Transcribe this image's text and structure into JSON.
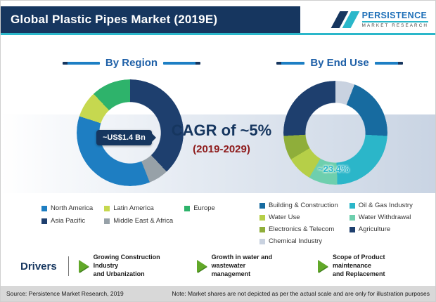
{
  "header": {
    "title": "Global Plastic Pipes Market (2019E)",
    "logo": {
      "line1": "PERSISTENCE",
      "line2": "MARKET RESEARCH"
    }
  },
  "center": {
    "cagr": "CAGR of ~5%",
    "period": "(2019-2029)"
  },
  "chart_data": [
    {
      "type": "pie",
      "title": "By Region",
      "donut": true,
      "callout": "~US$1.4 Bn",
      "legend_position": "bottom",
      "segments": [
        {
          "label": "Asia Pacific",
          "value": 38,
          "color": "#1e3f6e"
        },
        {
          "label": "Middle East & Africa",
          "value": 6,
          "color": "#97a1a8"
        },
        {
          "label": "North America",
          "value": 36,
          "color": "#1e7ec2"
        },
        {
          "label": "Latin America",
          "value": 8,
          "color": "#c6d84f"
        },
        {
          "label": "Europe",
          "value": 12,
          "color": "#2eb36b"
        }
      ],
      "legend": [
        {
          "label": "North America",
          "color": "#1e7ec2"
        },
        {
          "label": "Latin America",
          "color": "#c6d84f"
        },
        {
          "label": "Europe",
          "color": "#2eb36b"
        },
        {
          "label": "Asia Pacific",
          "color": "#1e3f6e"
        },
        {
          "label": "Middle East & Africa",
          "color": "#97a1a8"
        }
      ]
    },
    {
      "type": "pie",
      "title": "By End Use",
      "donut": true,
      "callout": "~23.4%",
      "legend_position": "bottom",
      "segments": [
        {
          "label": "Chemical Industry",
          "value": 6,
          "color": "#c9d2e0"
        },
        {
          "label": "Building & Construction",
          "value": 20,
          "color": "#176ba0"
        },
        {
          "label": "Oil & Gas Industry",
          "value": 23.4,
          "color": "#2bb6c9"
        },
        {
          "label": "Water Withdrawal",
          "value": 9,
          "color": "#6ecfae"
        },
        {
          "label": "Water Use",
          "value": 8,
          "color": "#b6cf48"
        },
        {
          "label": "Electronics & Telecom",
          "value": 7.6,
          "color": "#8fae3a"
        },
        {
          "label": "Agriculture",
          "value": 26,
          "color": "#1e3f6e"
        }
      ],
      "legend": [
        {
          "label": "Building & Construction",
          "color": "#176ba0"
        },
        {
          "label": "Oil & Gas Industry",
          "color": "#2bb6c9"
        },
        {
          "label": "Water Use",
          "color": "#b6cf48"
        },
        {
          "label": "Water Withdrawal",
          "color": "#6ecfae"
        },
        {
          "label": "Electronics & Telecom",
          "color": "#8fae3a"
        },
        {
          "label": "Agriculture",
          "color": "#1e3f6e"
        },
        {
          "label": "Chemical Industry",
          "color": "#c9d2e0"
        }
      ]
    }
  ],
  "drivers": {
    "label": "Drivers",
    "items": [
      {
        "line1": "Growing Construction Industry",
        "line2": "and Urbanization"
      },
      {
        "line1": "Growth in water and wastewater",
        "line2": "management"
      },
      {
        "line1": "Scope of Product maintenance",
        "line2": "and Replacement"
      }
    ]
  },
  "footer": {
    "source": "Source: Persistence Market Research, 2019",
    "note": "Note: Market shares are not depicted as per the actual scale and are only for illustration purposes"
  }
}
